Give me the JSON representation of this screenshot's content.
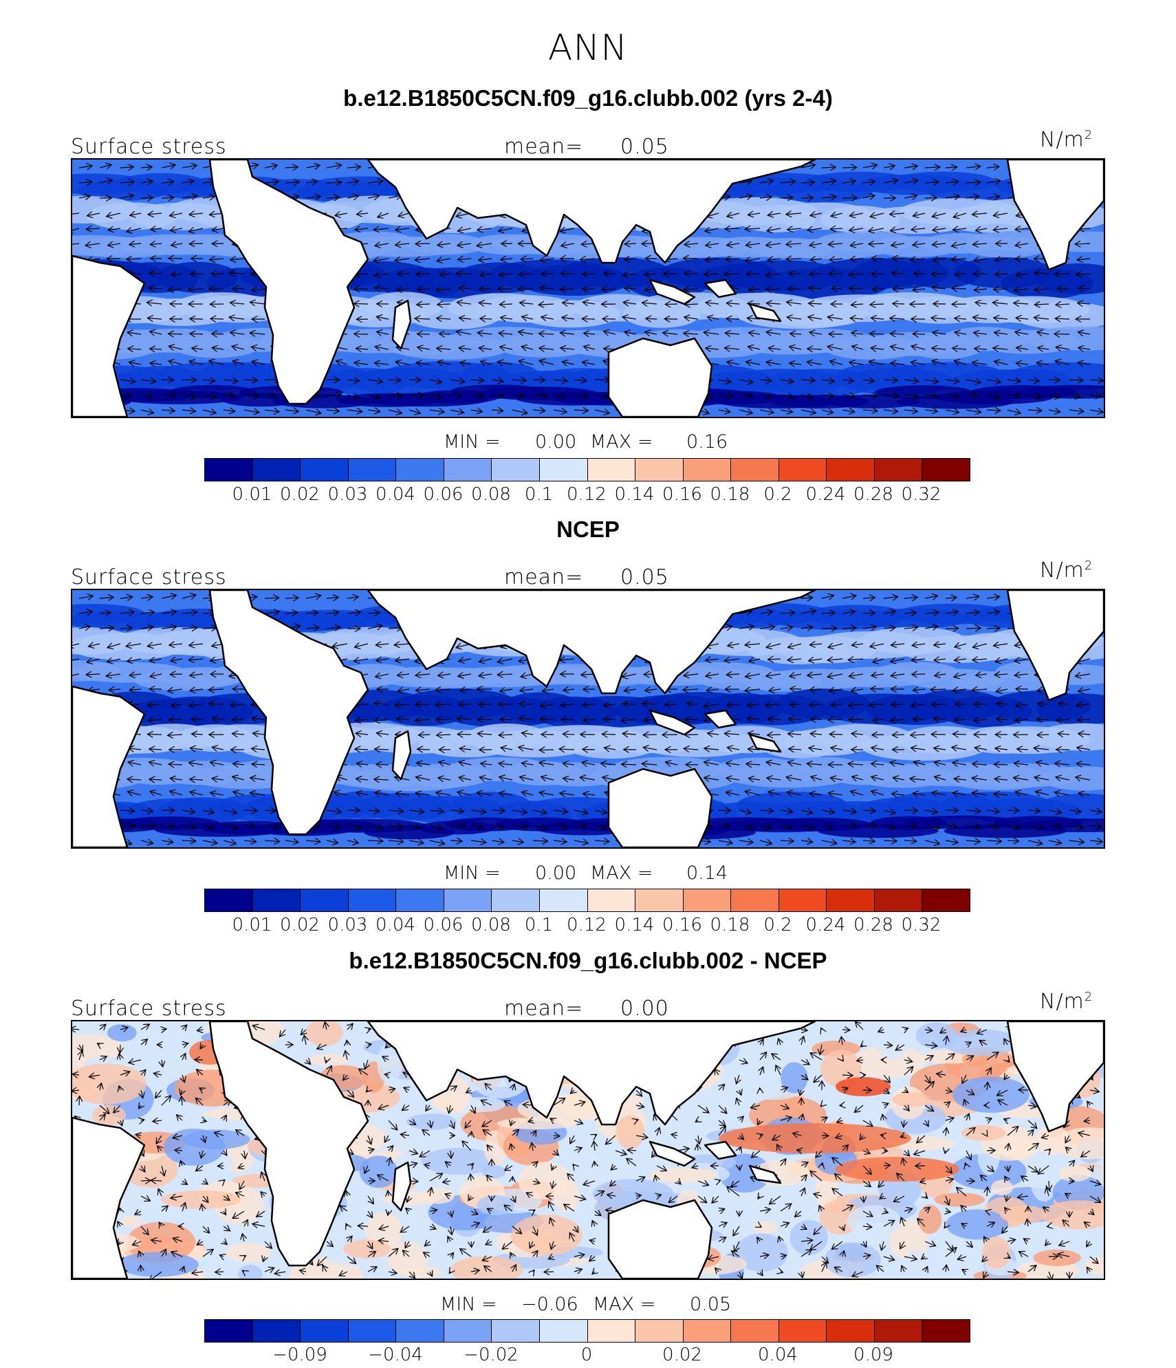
{
  "figure": {
    "title": "ANN",
    "colors": [
      "#00008e",
      "#0022b4",
      "#0a3fd8",
      "#1e5ae8",
      "#3c78f0",
      "#7aa3f5",
      "#aec8f8",
      "#d6e6fb",
      "#fde6d6",
      "#fcc6aa",
      "#f9a07a",
      "#f5784e",
      "#f04a22",
      "#d82e0c",
      "#b01808",
      "#800000"
    ],
    "land_color": "#ffffff",
    "coast_color": "#000000"
  },
  "panels": [
    {
      "title": "b.e12.B1850C5CN.f09_g16.clubb.002 (yrs 2-4)",
      "variable": "Surface stress",
      "mean_label": "mean=",
      "mean_value": "0.05",
      "units": "N/m",
      "units_sup": "2",
      "min_label": "MIN =",
      "min_value": "0.00",
      "max_label": "MAX =",
      "max_value": "0.16",
      "colorbar_ticks": [
        "0.01",
        "0.02",
        "0.03",
        "0.04",
        "0.06",
        "0.08",
        "0.1",
        "0.12",
        "0.14",
        "0.16",
        "0.18",
        "0.2",
        "0.24",
        "0.28",
        "0.32"
      ]
    },
    {
      "title": "NCEP",
      "variable": "Surface stress",
      "mean_label": "mean=",
      "mean_value": "0.05",
      "units": "N/m",
      "units_sup": "2",
      "min_label": "MIN =",
      "min_value": "0.00",
      "max_label": "MAX =",
      "max_value": "0.14",
      "colorbar_ticks": [
        "0.01",
        "0.02",
        "0.03",
        "0.04",
        "0.06",
        "0.08",
        "0.1",
        "0.12",
        "0.14",
        "0.16",
        "0.18",
        "0.2",
        "0.24",
        "0.28",
        "0.32"
      ]
    },
    {
      "title": "b.e12.B1850C5CN.f09_g16.clubb.002 - NCEP",
      "variable": "Surface stress",
      "mean_label": "mean=",
      "mean_value": "0.00",
      "units": "N/m",
      "units_sup": "2",
      "min_label": "MIN =",
      "min_value": "−0.06",
      "max_label": "MAX =",
      "max_value": "0.05",
      "colorbar_ticks": [
        "−0.09",
        "−0.04",
        "−0.02",
        "0",
        "0.02",
        "0.04",
        "0.09"
      ]
    }
  ]
}
